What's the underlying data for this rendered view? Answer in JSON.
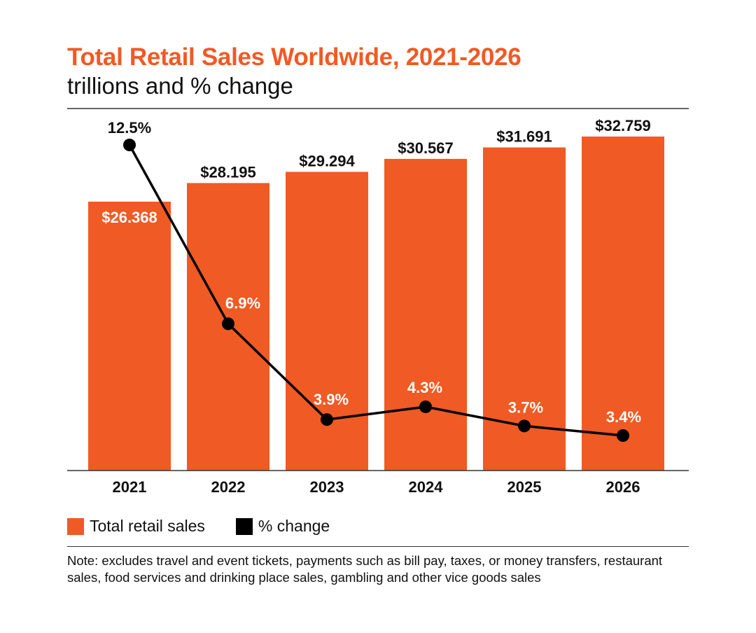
{
  "title": "Total Retail Sales Worldwide, 2021-2026",
  "subtitle": "trillions and % change",
  "legend": {
    "sales_label": "Total retail sales",
    "change_label": "% change"
  },
  "note": "Note: excludes travel and event tickets, payments such as bill pay, taxes, or money transfers, restaurant sales, food services and drinking place sales, gambling and other vice goods sales",
  "colors": {
    "bar": "#f05a24",
    "line": "#000000"
  },
  "chart_data": {
    "type": "bar",
    "categories": [
      "2021",
      "2022",
      "2023",
      "2024",
      "2025",
      "2026"
    ],
    "series": [
      {
        "name": "Total retail sales",
        "type": "bar",
        "values": [
          26.368,
          28.195,
          29.294,
          30.567,
          31.691,
          32.759
        ],
        "labels": [
          "$26.368",
          "$28.195",
          "$29.294",
          "$30.567",
          "$31.691",
          "$32.759"
        ]
      },
      {
        "name": "% change",
        "type": "line",
        "values": [
          12.5,
          6.9,
          3.9,
          4.3,
          3.7,
          3.4
        ],
        "labels": [
          "12.5%",
          "6.9%",
          "3.9%",
          "4.3%",
          "3.7%",
          "3.4%"
        ]
      }
    ],
    "title": "Total Retail Sales Worldwide, 2021-2026",
    "subtitle": "trillions and % change",
    "xlabel": "",
    "ylabel": "",
    "grid": false,
    "legend_position": "bottom-left"
  }
}
